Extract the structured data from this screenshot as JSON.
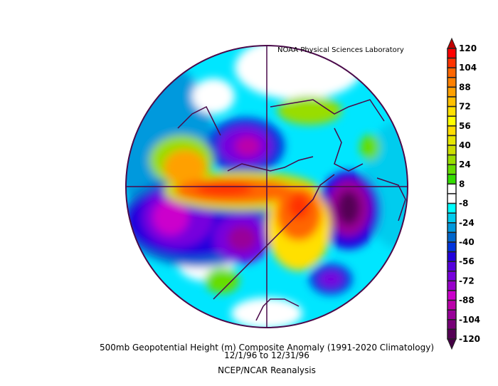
{
  "credit": "NOAA Physical Sciences Laboratory",
  "title": "500mb Geopotential Height (m) Composite Anomaly (1991-2020 Climatology)",
  "dates": "12/1/96  to 12/31/96",
  "source": "NCEP/NCAR Reanalysis",
  "colorbar": {
    "labels": [
      "120",
      "104",
      "88",
      "72",
      "56",
      "40",
      "24",
      "8",
      "-8",
      "-24",
      "-40",
      "-56",
      "-72",
      "-88",
      "-104",
      "-120"
    ],
    "top_triangle_color": "#c00000",
    "bottom_triangle_color": "#440044",
    "colors": [
      "#ff0000",
      "#ff3300",
      "#ff6600",
      "#ff8000",
      "#ffa000",
      "#ffc000",
      "#ffe000",
      "#ffff00",
      "#ffdd00",
      "#e6e600",
      "#ccdd00",
      "#99dd00",
      "#66dd00",
      "#33dd00",
      "#ffffff",
      "#ffffff",
      "#00ffff",
      "#00ccee",
      "#0099dd",
      "#0066cc",
      "#0033dd",
      "#2200dd",
      "#5500dd",
      "#7700dd",
      "#9900cc",
      "#cc00cc",
      "#bb00aa",
      "#990099",
      "#770077",
      "#550055"
    ]
  },
  "map": {
    "projection": "north polar stereographic",
    "background_color": "#00e6ff",
    "coastline_color": "#4a0a4a"
  }
}
